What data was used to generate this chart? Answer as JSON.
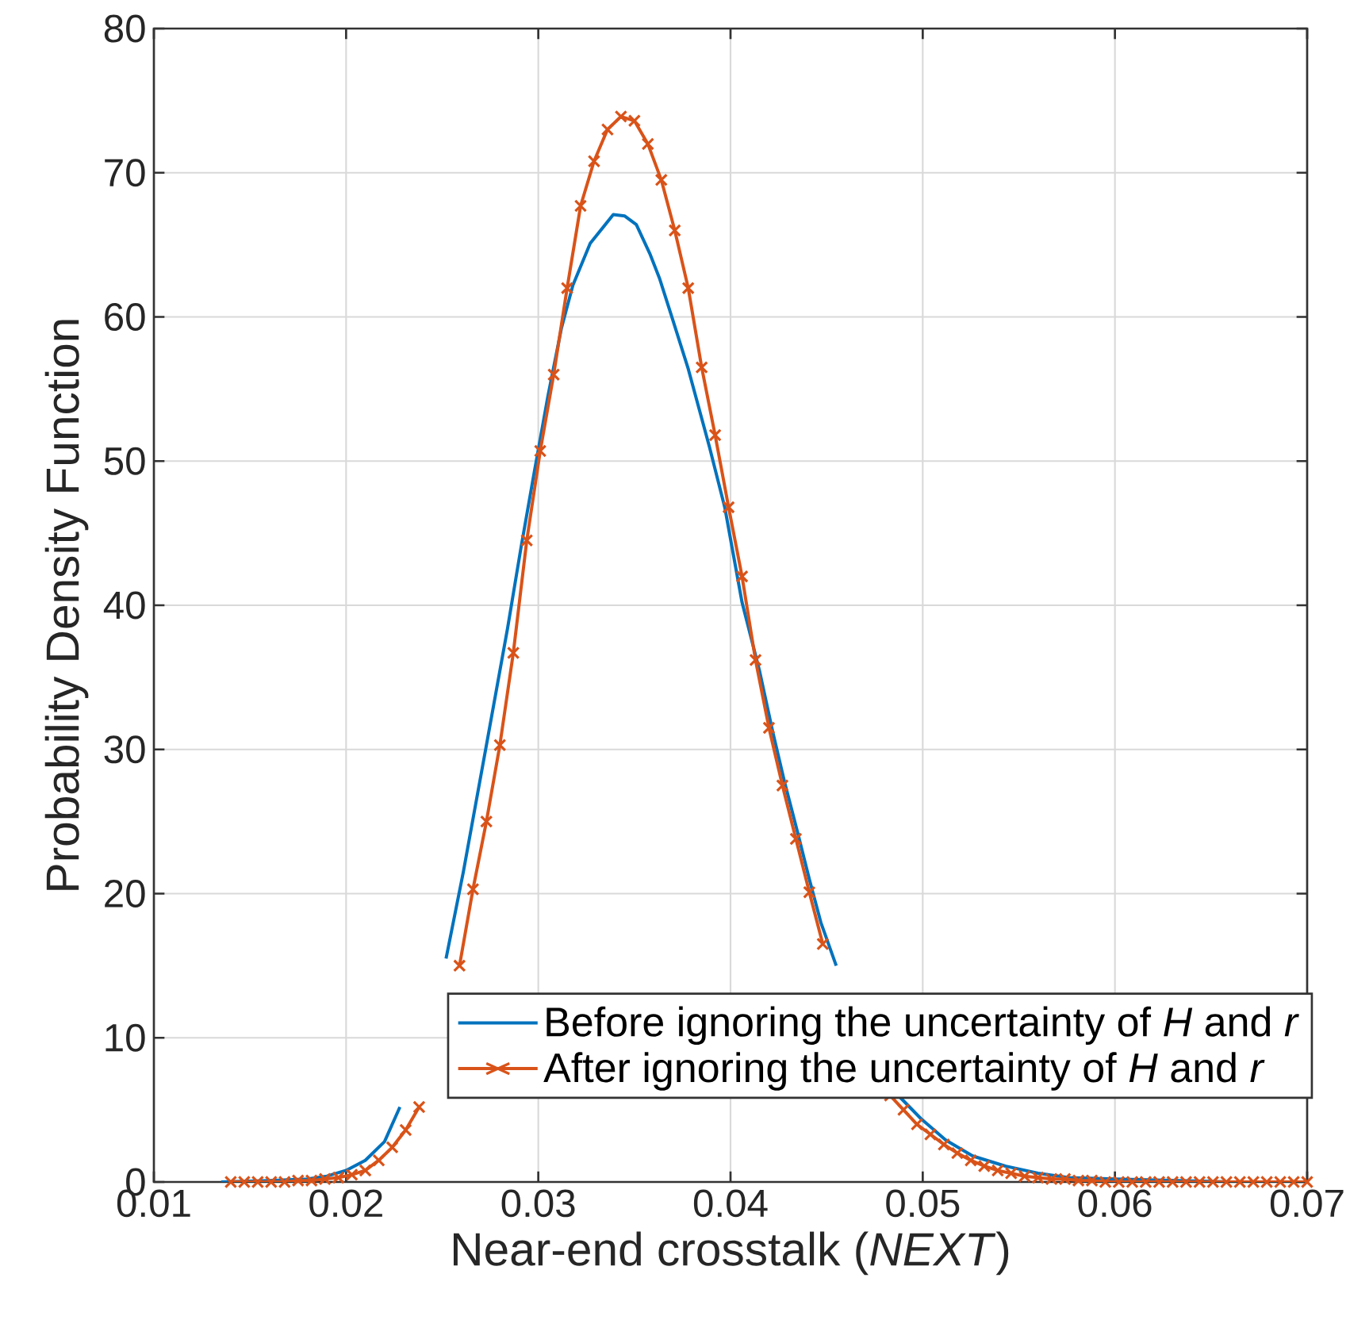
{
  "chart_data": {
    "type": "line",
    "xlabel": "Near-end crosstalk (*NEXT*)",
    "ylabel": "Probability Density Function",
    "xlim": [
      0.01,
      0.07
    ],
    "ylim": [
      0,
      80
    ],
    "xticks": [
      0.01,
      0.02,
      0.03,
      0.04,
      0.05,
      0.06,
      0.07
    ],
    "yticks": [
      0,
      10,
      20,
      30,
      40,
      50,
      60,
      70,
      80
    ],
    "grid": true,
    "legend": "bottom right",
    "series": [
      {
        "name": "Before ignoring the uncertainty of *H* and *r*",
        "color": "#0072bd",
        "marker": "none",
        "x": [
          0.0135,
          0.016,
          0.018,
          0.019,
          0.02,
          0.021,
          0.022,
          0.0228,
          0.024,
          0.0252,
          0.0261,
          0.0273,
          0.0284,
          0.0291,
          0.0298,
          0.0305,
          0.0312,
          0.0318,
          0.0327,
          0.0339,
          0.0345,
          0.0351,
          0.0358,
          0.0363,
          0.0369,
          0.0378,
          0.0389,
          0.0397,
          0.0406,
          0.0415,
          0.0422,
          0.0428,
          0.0435,
          0.0441,
          0.0447,
          0.0455,
          0.047,
          0.0488,
          0.0499,
          0.0512,
          0.0526,
          0.0543,
          0.056,
          0.0576,
          0.06,
          0.063,
          0.066,
          0.07
        ],
        "values": [
          0,
          0.1,
          0.2,
          0.4,
          0.8,
          1.5,
          2.8,
          5.2,
          null,
          15.5,
          21.5,
          30.3,
          38.4,
          44.0,
          49.3,
          54.5,
          59.2,
          62.2,
          65.1,
          67.1,
          67.0,
          66.4,
          64.4,
          62.7,
          60.2,
          56.4,
          51.0,
          46.8,
          40.2,
          35.5,
          31.2,
          27.8,
          24.2,
          21.0,
          18.0,
          15.0,
          null,
          5.9,
          4.4,
          2.9,
          1.8,
          1.1,
          0.6,
          0.3,
          0.2,
          0.1,
          0,
          0
        ]
      },
      {
        "name": "After ignoring the uncertainty of *H* and *r*",
        "color": "#d95319",
        "marker": "cross",
        "x": [
          0.014,
          0.0147,
          0.0154,
          0.0161,
          0.0168,
          0.0175,
          0.0182,
          0.0189,
          0.0196,
          0.0203,
          0.021,
          0.0217,
          0.0224,
          0.0231,
          0.0238,
          0.0245,
          0.0252,
          0.0259,
          0.0266,
          0.0273,
          0.028,
          0.0287,
          0.0294,
          0.0301,
          0.0308,
          0.0315,
          0.0322,
          0.0329,
          0.0336,
          0.0343,
          0.035,
          0.0357,
          0.0364,
          0.0371,
          0.0378,
          0.0385,
          0.0392,
          0.0399,
          0.0406,
          0.0413,
          0.042,
          0.0427,
          0.0434,
          0.0441,
          0.0448,
          0.0455,
          0.0462,
          0.0469,
          0.0476,
          0.0483,
          0.049,
          0.0497,
          0.0504,
          0.0511,
          0.0518,
          0.0525,
          0.0532,
          0.0539,
          0.0546,
          0.0553,
          0.056,
          0.0567,
          0.0574,
          0.0581,
          0.0588,
          0.0595,
          0.0602,
          0.0609,
          0.0616,
          0.0623,
          0.063,
          0.0637,
          0.0644,
          0.0651,
          0.0658,
          0.0665,
          0.0672,
          0.0679,
          0.0686,
          0.0693,
          0.07
        ],
        "values": [
          0,
          0,
          0,
          0,
          0,
          0.1,
          0.1,
          0.2,
          0.3,
          0.5,
          0.8,
          1.5,
          2.4,
          3.6,
          5.2,
          null,
          null,
          15.0,
          20.3,
          25.0,
          30.3,
          36.7,
          44.5,
          50.7,
          56.0,
          62.0,
          67.7,
          70.8,
          73.0,
          73.9,
          73.6,
          72.0,
          69.5,
          66.0,
          62.0,
          56.5,
          51.8,
          46.8,
          42.0,
          36.2,
          31.5,
          27.5,
          23.8,
          20.1,
          16.5,
          null,
          null,
          null,
          null,
          6.0,
          5.0,
          4.0,
          3.3,
          2.6,
          2.0,
          1.5,
          1.1,
          0.8,
          0.6,
          0.4,
          0.3,
          0.2,
          0.2,
          0.1,
          0.1,
          0,
          0,
          0,
          0,
          0,
          0,
          0,
          0,
          0,
          0,
          0,
          0,
          0,
          0,
          0,
          0
        ]
      }
    ]
  }
}
